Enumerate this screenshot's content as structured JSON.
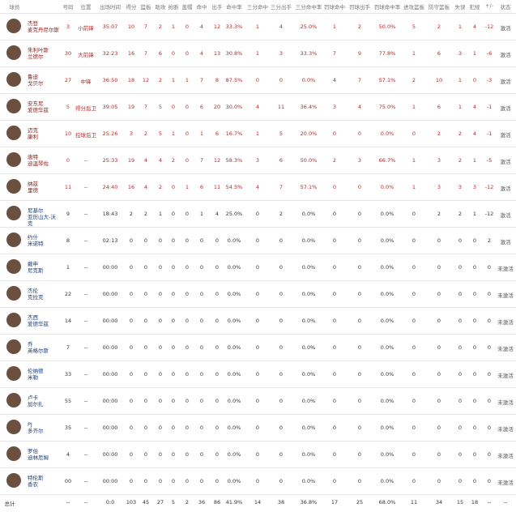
{
  "table": {
    "headers": [
      "球员",
      "号码",
      "位置",
      "出场时间",
      "得分",
      "篮板",
      "助攻",
      "抢断",
      "盖帽",
      "命中",
      "出手",
      "命中率",
      "三分命中",
      "三分出手",
      "三分命中率",
      "罚球命中",
      "罚球出手",
      "罚球命中率",
      "进攻篮板",
      "防守篮板",
      "失误",
      "犯规",
      "+/-",
      "状态"
    ],
    "rows": [
      {
        "name": [
          "杰登",
          "麦克丹尼尔斯"
        ],
        "cells": [
          "3",
          "小前锋",
          "35:07",
          "10",
          "7",
          "2",
          "1",
          "0",
          "4",
          "12",
          "33.3%",
          "1",
          "4",
          "25.0%",
          "1",
          "2",
          "50.0%",
          "5",
          "2",
          "1",
          "4",
          "-12",
          "激活"
        ]
      },
      {
        "name": [
          "朱利叶斯",
          "兰德尔"
        ],
        "cells": [
          "30",
          "大前锋",
          "32:23",
          "16",
          "7",
          "6",
          "0",
          "0",
          "4",
          "13",
          "30.8%",
          "1",
          "3",
          "33.3%",
          "7",
          "9",
          "77.8%",
          "1",
          "6",
          "3",
          "1",
          "-6",
          "激活"
        ]
      },
      {
        "name": [
          "鲁迪",
          "戈贝尔"
        ],
        "cells": [
          "27",
          "中锋",
          "36:50",
          "18",
          "12",
          "2",
          "1",
          "1",
          "7",
          "8",
          "87.5%",
          "0",
          "0",
          "0.0%",
          "4",
          "7",
          "57.1%",
          "2",
          "10",
          "1",
          "0",
          "-3",
          "激活"
        ]
      },
      {
        "name": [
          "安东尼",
          "爱德华兹"
        ],
        "cells": [
          "5",
          "得分后卫",
          "39:05",
          "19",
          "7",
          "5",
          "0",
          "0",
          "6",
          "20",
          "30.0%",
          "4",
          "11",
          "36.4%",
          "3",
          "4",
          "75.0%",
          "1",
          "6",
          "1",
          "4",
          "-1",
          "激活"
        ]
      },
      {
        "name": [
          "迈克",
          "康利"
        ],
        "cells": [
          "10",
          "控球后卫",
          "25:26",
          "3",
          "2",
          "5",
          "1",
          "0",
          "1",
          "6",
          "16.7%",
          "1",
          "5",
          "20.0%",
          "0",
          "0",
          "0.0%",
          "0",
          "2",
          "2",
          "4",
          "-1",
          "激活"
        ]
      },
      {
        "name": [
          "唐特",
          "迪温琴佐"
        ],
        "cells": [
          "0",
          "--",
          "25:33",
          "19",
          "4",
          "4",
          "2",
          "0",
          "7",
          "12",
          "58.3%",
          "3",
          "6",
          "50.0%",
          "2",
          "3",
          "66.7%",
          "1",
          "3",
          "2",
          "1",
          "-5",
          "激活"
        ]
      },
      {
        "name": [
          "纳兹",
          "里德"
        ],
        "cells": [
          "11",
          "--",
          "24:40",
          "16",
          "4",
          "2",
          "0",
          "1",
          "6",
          "11",
          "54.5%",
          "4",
          "7",
          "57.1%",
          "0",
          "0",
          "0.0%",
          "1",
          "3",
          "3",
          "3",
          "-12",
          "激活"
        ]
      },
      {
        "name": [
          "尼基尔",
          "亚历山大-沃克"
        ],
        "cells": [
          "9",
          "--",
          "18:43",
          "2",
          "2",
          "1",
          "0",
          "0",
          "1",
          "4",
          "25.0%",
          "0",
          "2",
          "0.0%",
          "0",
          "0",
          "0.0%",
          "0",
          "2",
          "2",
          "1",
          "-12",
          "激活"
        ]
      },
      {
        "name": [
          "约什",
          "米诺特"
        ],
        "cells": [
          "8",
          "--",
          "02:13",
          "0",
          "0",
          "0",
          "0",
          "0",
          "0",
          "0",
          "0.0%",
          "0",
          "0",
          "0.0%",
          "0",
          "0",
          "0.0%",
          "0",
          "0",
          "0",
          "0",
          "2",
          "激活"
        ]
      },
      {
        "name": [
          "戴申",
          "尼克斯"
        ],
        "cells": [
          "1",
          "--",
          "00:00",
          "0",
          "0",
          "0",
          "0",
          "0",
          "0",
          "0",
          "0.0%",
          "0",
          "0",
          "0.0%",
          "0",
          "0",
          "0.0%",
          "0",
          "0",
          "0",
          "0",
          "0",
          "未激活"
        ]
      },
      {
        "name": [
          "杰伦",
          "克拉克"
        ],
        "cells": [
          "22",
          "--",
          "00:00",
          "0",
          "0",
          "0",
          "0",
          "0",
          "0",
          "0",
          "0.0%",
          "0",
          "0",
          "0.0%",
          "0",
          "0",
          "0.0%",
          "0",
          "0",
          "0",
          "0",
          "0",
          "未激活"
        ]
      },
      {
        "name": [
          "杰西",
          "爱德华兹"
        ],
        "cells": [
          "14",
          "--",
          "00:00",
          "0",
          "0",
          "0",
          "0",
          "0",
          "0",
          "0",
          "0.0%",
          "0",
          "0",
          "0.0%",
          "0",
          "0",
          "0.0%",
          "0",
          "0",
          "0",
          "0",
          "0",
          "未激活"
        ]
      },
      {
        "name": [
          "乔",
          "英格尔斯"
        ],
        "cells": [
          "7",
          "--",
          "00:00",
          "0",
          "0",
          "0",
          "0",
          "0",
          "0",
          "0",
          "0.0%",
          "0",
          "0",
          "0.0%",
          "0",
          "0",
          "0.0%",
          "0",
          "0",
          "0",
          "0",
          "0",
          "未激活"
        ]
      },
      {
        "name": [
          "伦纳德",
          "米勒"
        ],
        "cells": [
          "33",
          "--",
          "00:00",
          "0",
          "0",
          "0",
          "0",
          "0",
          "0",
          "0",
          "0.0%",
          "0",
          "0",
          "0.0%",
          "0",
          "0",
          "0.0%",
          "0",
          "0",
          "0",
          "0",
          "0",
          "未激活"
        ]
      },
      {
        "name": [
          "卢卡",
          "加尔扎"
        ],
        "cells": [
          "55",
          "--",
          "00:00",
          "0",
          "0",
          "0",
          "0",
          "0",
          "0",
          "0",
          "0.0%",
          "0",
          "0",
          "0.0%",
          "0",
          "0",
          "0.0%",
          "0",
          "0",
          "0",
          "0",
          "0",
          "未激活"
        ]
      },
      {
        "name": [
          "PJ",
          "多齐尔"
        ],
        "cells": [
          "35",
          "--",
          "00:00",
          "0",
          "0",
          "0",
          "0",
          "0",
          "0",
          "0",
          "0.0%",
          "0",
          "0",
          "0.0%",
          "0",
          "0",
          "0.0%",
          "0",
          "0",
          "0",
          "0",
          "0",
          "未激活"
        ]
      },
      {
        "name": [
          "罗伯",
          "迪林厄姆"
        ],
        "cells": [
          "4",
          "--",
          "00:00",
          "0",
          "0",
          "0",
          "0",
          "0",
          "0",
          "0",
          "0.0%",
          "0",
          "0",
          "0.0%",
          "0",
          "0",
          "0.0%",
          "0",
          "0",
          "0",
          "0",
          "0",
          "未激活"
        ]
      },
      {
        "name": [
          "特伦斯",
          "香农"
        ],
        "cells": [
          "00",
          "--",
          "00:00",
          "0",
          "0",
          "0",
          "0",
          "0",
          "0",
          "0",
          "0.0%",
          "0",
          "0",
          "0.0%",
          "0",
          "0",
          "0.0%",
          "0",
          "0",
          "0",
          "0",
          "0",
          "未激活"
        ]
      }
    ],
    "total": [
      "总计",
      "--",
      "--",
      "0:0",
      "103",
      "45",
      "27",
      "5",
      "2",
      "36",
      "86",
      "41.9%",
      "14",
      "38",
      "36.8%",
      "17",
      "25",
      "68.0%",
      "11",
      "34",
      "15",
      "18",
      "--",
      "--"
    ]
  }
}
